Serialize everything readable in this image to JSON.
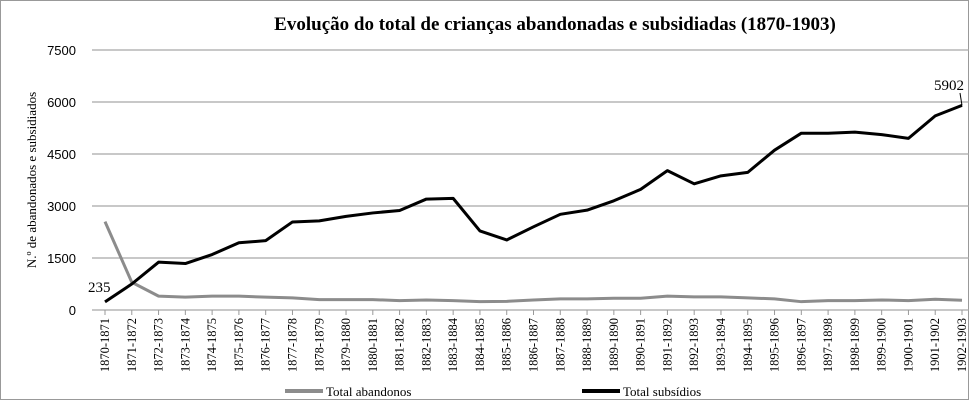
{
  "chart_data": {
    "type": "line",
    "title": "Evolução do total de crianças abandonadas e subsidiadas (1870-1903)",
    "y_label": "N.º de abandonados e subsidiados",
    "categories": [
      "1870-1871",
      "1871-1872",
      "1872-1873",
      "1873-1874",
      "1874-1875",
      "1875-1876",
      "1876-1877",
      "1877-1878",
      "1878-1879",
      "1879-1880",
      "1880-1881",
      "1881-1882",
      "1882-1883",
      "1883-1884",
      "1884-1885",
      "1885-1886",
      "1886-1887",
      "1887-1888",
      "1888-1889",
      "1889-1890",
      "1890-1891",
      "1891-1892",
      "1892-1893",
      "1893-1894",
      "1894-1895",
      "1895-1896",
      "1896-1897",
      "1897-1898",
      "1898-1899",
      "1899-1900",
      "1900-1901",
      "1901-1902",
      "1902-1903"
    ],
    "series": [
      {
        "name": "Total abandonos",
        "color": "#8c8c8c",
        "values": [
          2550,
          800,
          400,
          370,
          400,
          400,
          370,
          350,
          300,
          300,
          300,
          270,
          290,
          270,
          240,
          250,
          290,
          320,
          320,
          340,
          340,
          400,
          380,
          380,
          350,
          320,
          240,
          270,
          270,
          290,
          270,
          310,
          280
        ]
      },
      {
        "name": "Total subsídios",
        "color": "#000000",
        "values": [
          235,
          750,
          1380,
          1340,
          1600,
          1940,
          2000,
          2540,
          2570,
          2700,
          2800,
          2870,
          3200,
          3220,
          2280,
          2020,
          2400,
          2760,
          2880,
          3150,
          3480,
          4020,
          3640,
          3870,
          3970,
          4610,
          5100,
          5100,
          5130,
          5060,
          4950,
          5600,
          5902
        ]
      }
    ],
    "ylim": [
      0,
      7500
    ],
    "yticks": [
      0,
      1500,
      3000,
      4500,
      6000,
      7500
    ],
    "grid": true,
    "legend": "bottom"
  }
}
